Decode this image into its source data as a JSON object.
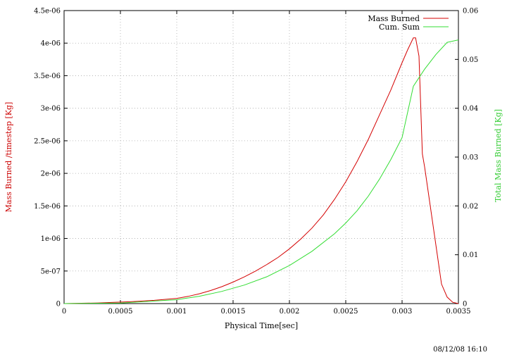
{
  "chart_data": {
    "type": "line",
    "title": "",
    "xlabel": "Physical Time[sec]",
    "ylabel_left": "Mass Burned /timestep [Kg]",
    "ylabel_right": "Total Mass Burned [Kg]",
    "xlim": [
      0,
      0.0035
    ],
    "ylim_left": [
      0,
      4.5e-06
    ],
    "ylim_right": [
      0,
      0.06
    ],
    "grid": true,
    "legend_position": "top-right",
    "x_ticks": [
      "0",
      "0.0005",
      "0.001",
      "0.0015",
      "0.002",
      "0.0025",
      "0.003",
      "0.0035"
    ],
    "y_left_ticks": [
      "0",
      "5e-07",
      "1e-06",
      "1.5e-06",
      "2e-06",
      "2.5e-06",
      "3e-06",
      "3.5e-06",
      "4e-06",
      "4.5e-06"
    ],
    "y_right_ticks": [
      "0",
      "0.01",
      "0.02",
      "0.03",
      "0.04",
      "0.05",
      "0.06"
    ],
    "colors": {
      "mass_burned": "#d40000",
      "cum_sum": "#33dd33",
      "left_axis_label": "#cc0000",
      "right_axis_label": "#33cc33",
      "grid": "#aaaaaa"
    },
    "series": [
      {
        "name": "Mass Burned",
        "axis": "left",
        "x": [
          0,
          0.0003,
          0.0006,
          0.0008,
          0.001,
          0.0011,
          0.0012,
          0.0013,
          0.0014,
          0.0015,
          0.0016,
          0.0017,
          0.0018,
          0.0019,
          0.002,
          0.0021,
          0.0022,
          0.0023,
          0.0024,
          0.0025,
          0.0026,
          0.0027,
          0.0028,
          0.0029,
          0.003,
          0.00305,
          0.0031,
          0.00312,
          0.00315,
          0.00318,
          0.0032,
          0.00325,
          0.0033,
          0.00335,
          0.0034,
          0.00345,
          0.0035
        ],
        "y": [
          0,
          1e-08,
          3e-08,
          5e-08,
          8e-08,
          1.1e-07,
          1.5e-07,
          2e-07,
          2.6e-07,
          3.3e-07,
          4.1e-07,
          5e-07,
          6e-07,
          7.1e-07,
          8.4e-07,
          9.9e-07,
          1.16e-06,
          1.36e-06,
          1.6e-06,
          1.87e-06,
          2.18e-06,
          2.52e-06,
          2.9e-06,
          3.28e-06,
          3.7e-06,
          3.9e-06,
          4.08e-06,
          4.08e-06,
          3.8e-06,
          2.3e-06,
          2.1e-06,
          1.5e-06,
          9e-07,
          3e-07,
          1e-07,
          2e-08,
          0
        ]
      },
      {
        "name": "Cum. Sum",
        "axis": "right",
        "x": [
          0,
          0.0005,
          0.001,
          0.0012,
          0.0014,
          0.0016,
          0.0018,
          0.002,
          0.0022,
          0.0024,
          0.0025,
          0.0026,
          0.0027,
          0.0028,
          0.0029,
          0.003,
          0.0031,
          0.0032,
          0.0033,
          0.0034,
          0.0035
        ],
        "y": [
          0,
          0.0001,
          0.0008,
          0.0015,
          0.0025,
          0.0038,
          0.0055,
          0.0078,
          0.0107,
          0.0143,
          0.0165,
          0.019,
          0.022,
          0.0255,
          0.0295,
          0.034,
          0.0445,
          0.048,
          0.051,
          0.0535,
          0.054
        ]
      }
    ]
  },
  "footer": {
    "timestamp": "08/12/08 16:10"
  }
}
